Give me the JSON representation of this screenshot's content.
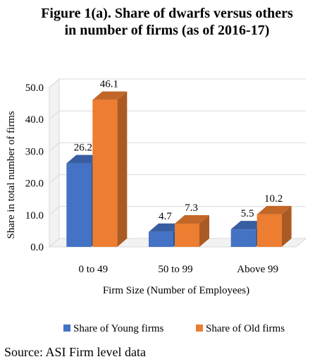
{
  "figure": {
    "title_line1": "Figure 1(a). Share of dwarfs versus others",
    "title_line2": "in number of firms (as of 2016-17)",
    "source": "Source: ASI Firm level data"
  },
  "colors": {
    "young": "#4472C4",
    "old": "#ED7D31",
    "grid": "#D9D9D9",
    "wall": "#F2F2F2"
  },
  "chart_data": {
    "type": "bar",
    "title": "",
    "xlabel": "Firm Size (Number of Employees)",
    "ylabel": "Share in total number of firms",
    "categories": [
      "0 to 49",
      "50 to 99",
      "Above 99"
    ],
    "ylim": [
      0,
      50
    ],
    "yticks": [
      "0.0",
      "10.0",
      "20.0",
      "30.0",
      "40.0",
      "50.0"
    ],
    "ytick_values": [
      0,
      10,
      20,
      30,
      40,
      50
    ],
    "series": [
      {
        "name": "Share of Young firms",
        "values": [
          26.2,
          4.7,
          5.5
        ],
        "labels": [
          "26.2",
          "4.7",
          "5.5"
        ],
        "color": "#4472C4"
      },
      {
        "name": "Share of Old firms",
        "values": [
          46.1,
          7.3,
          10.2
        ],
        "labels": [
          "46.1",
          "7.3",
          "10.2"
        ],
        "color": "#ED7D31"
      }
    ],
    "legend": "bottom",
    "grid": true,
    "style": "3d-clustered-column"
  }
}
